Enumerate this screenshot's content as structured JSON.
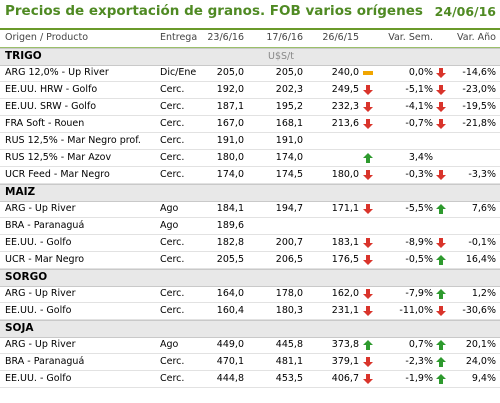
{
  "title": "Precios de exportación de granos. FOB varios orígenes",
  "date": "24/06/16",
  "headers": {
    "product": "Origen / Producto",
    "delivery": "Entrega",
    "d1": "23/6/16",
    "d2": "17/6/16",
    "d3": "26/6/15",
    "var_week": "Var. Sem.",
    "var_year": "Var. Año"
  },
  "unit": "U$S/t",
  "sections": [
    {
      "name": "TRIGO",
      "rows": [
        {
          "product": "ARG 12,0% - Up River",
          "delivery": "Dic/Ene",
          "d1": "205,0",
          "d2": "205,0",
          "d3": "240,0",
          "ind1": "flat",
          "var_week": "0,0%",
          "ind2": "down",
          "var_year": "-14,6%"
        },
        {
          "product": "EE.UU. HRW - Golfo",
          "delivery": "Cerc.",
          "d1": "192,0",
          "d2": "202,3",
          "d3": "249,5",
          "ind1": "down",
          "var_week": "-5,1%",
          "ind2": "down",
          "var_year": "-23,0%"
        },
        {
          "product": "EE.UU. SRW - Golfo",
          "delivery": "Cerc.",
          "d1": "187,1",
          "d2": "195,2",
          "d3": "232,3",
          "ind1": "down",
          "var_week": "-4,1%",
          "ind2": "down",
          "var_year": "-19,5%"
        },
        {
          "product": "FRA Soft - Rouen",
          "delivery": "Cerc.",
          "d1": "167,0",
          "d2": "168,1",
          "d3": "213,6",
          "ind1": "down",
          "var_week": "-0,7%",
          "ind2": "down",
          "var_year": "-21,8%"
        },
        {
          "product": "RUS 12,5% - Mar Negro prof.",
          "delivery": "Cerc.",
          "d1": "191,0",
          "d2": "191,0",
          "d3": "",
          "ind1": "",
          "var_week": "",
          "ind2": "",
          "var_year": ""
        },
        {
          "product": "RUS 12,5% - Mar Azov",
          "delivery": "Cerc.",
          "d1": "180,0",
          "d2": "174,0",
          "d3": "",
          "ind1": "up",
          "var_week": "3,4%",
          "ind2": "",
          "var_year": ""
        },
        {
          "product": "UCR Feed - Mar Negro",
          "delivery": "Cerc.",
          "d1": "174,0",
          "d2": "174,5",
          "d3": "180,0",
          "ind1": "down",
          "var_week": "-0,3%",
          "ind2": "down",
          "var_year": "-3,3%"
        }
      ]
    },
    {
      "name": "MAIZ",
      "rows": [
        {
          "product": "ARG - Up River",
          "delivery": "Ago",
          "d1": "184,1",
          "d2": "194,7",
          "d3": "171,1",
          "ind1": "down",
          "var_week": "-5,5%",
          "ind2": "up",
          "var_year": "7,6%"
        },
        {
          "product": "BRA - Paranaguá",
          "delivery": "Ago",
          "d1": "189,6",
          "d2": "",
          "d3": "",
          "ind1": "",
          "var_week": "",
          "ind2": "",
          "var_year": ""
        },
        {
          "product": "EE.UU. - Golfo",
          "delivery": "Cerc.",
          "d1": "182,8",
          "d2": "200,7",
          "d3": "183,1",
          "ind1": "down",
          "var_week": "-8,9%",
          "ind2": "down",
          "var_year": "-0,1%"
        },
        {
          "product": "UCR - Mar Negro",
          "delivery": "Cerc.",
          "d1": "205,5",
          "d2": "206,5",
          "d3": "176,5",
          "ind1": "down",
          "var_week": "-0,5%",
          "ind2": "up",
          "var_year": "16,4%"
        }
      ]
    },
    {
      "name": "SORGO",
      "rows": [
        {
          "product": "ARG - Up River",
          "delivery": "Cerc.",
          "d1": "164,0",
          "d2": "178,0",
          "d3": "162,0",
          "ind1": "down",
          "var_week": "-7,9%",
          "ind2": "up",
          "var_year": "1,2%"
        },
        {
          "product": "EE.UU. - Golfo",
          "delivery": "Cerc.",
          "d1": "160,4",
          "d2": "180,3",
          "d3": "231,1",
          "ind1": "down",
          "var_week": "-11,0%",
          "ind2": "down",
          "var_year": "-30,6%"
        }
      ]
    },
    {
      "name": "SOJA",
      "rows": [
        {
          "product": "ARG - Up River",
          "delivery": "Ago",
          "d1": "449,0",
          "d2": "445,8",
          "d3": "373,8",
          "ind1": "up",
          "var_week": "0,7%",
          "ind2": "up",
          "var_year": "20,1%"
        },
        {
          "product": "BRA - Paranaguá",
          "delivery": "Cerc.",
          "d1": "470,1",
          "d2": "481,1",
          "d3": "379,1",
          "ind1": "down",
          "var_week": "-2,3%",
          "ind2": "up",
          "var_year": "24,0%"
        },
        {
          "product": "EE.UU. - Golfo",
          "delivery": "Cerc.",
          "d1": "444,8",
          "d2": "453,5",
          "d3": "406,7",
          "ind1": "down",
          "var_week": "-1,9%",
          "ind2": "up",
          "var_year": "9,4%"
        }
      ]
    }
  ],
  "colors": {
    "up": "#2e9a2e",
    "down": "#d9342b",
    "flat": "#f0a500",
    "title": "#4f8a23"
  }
}
